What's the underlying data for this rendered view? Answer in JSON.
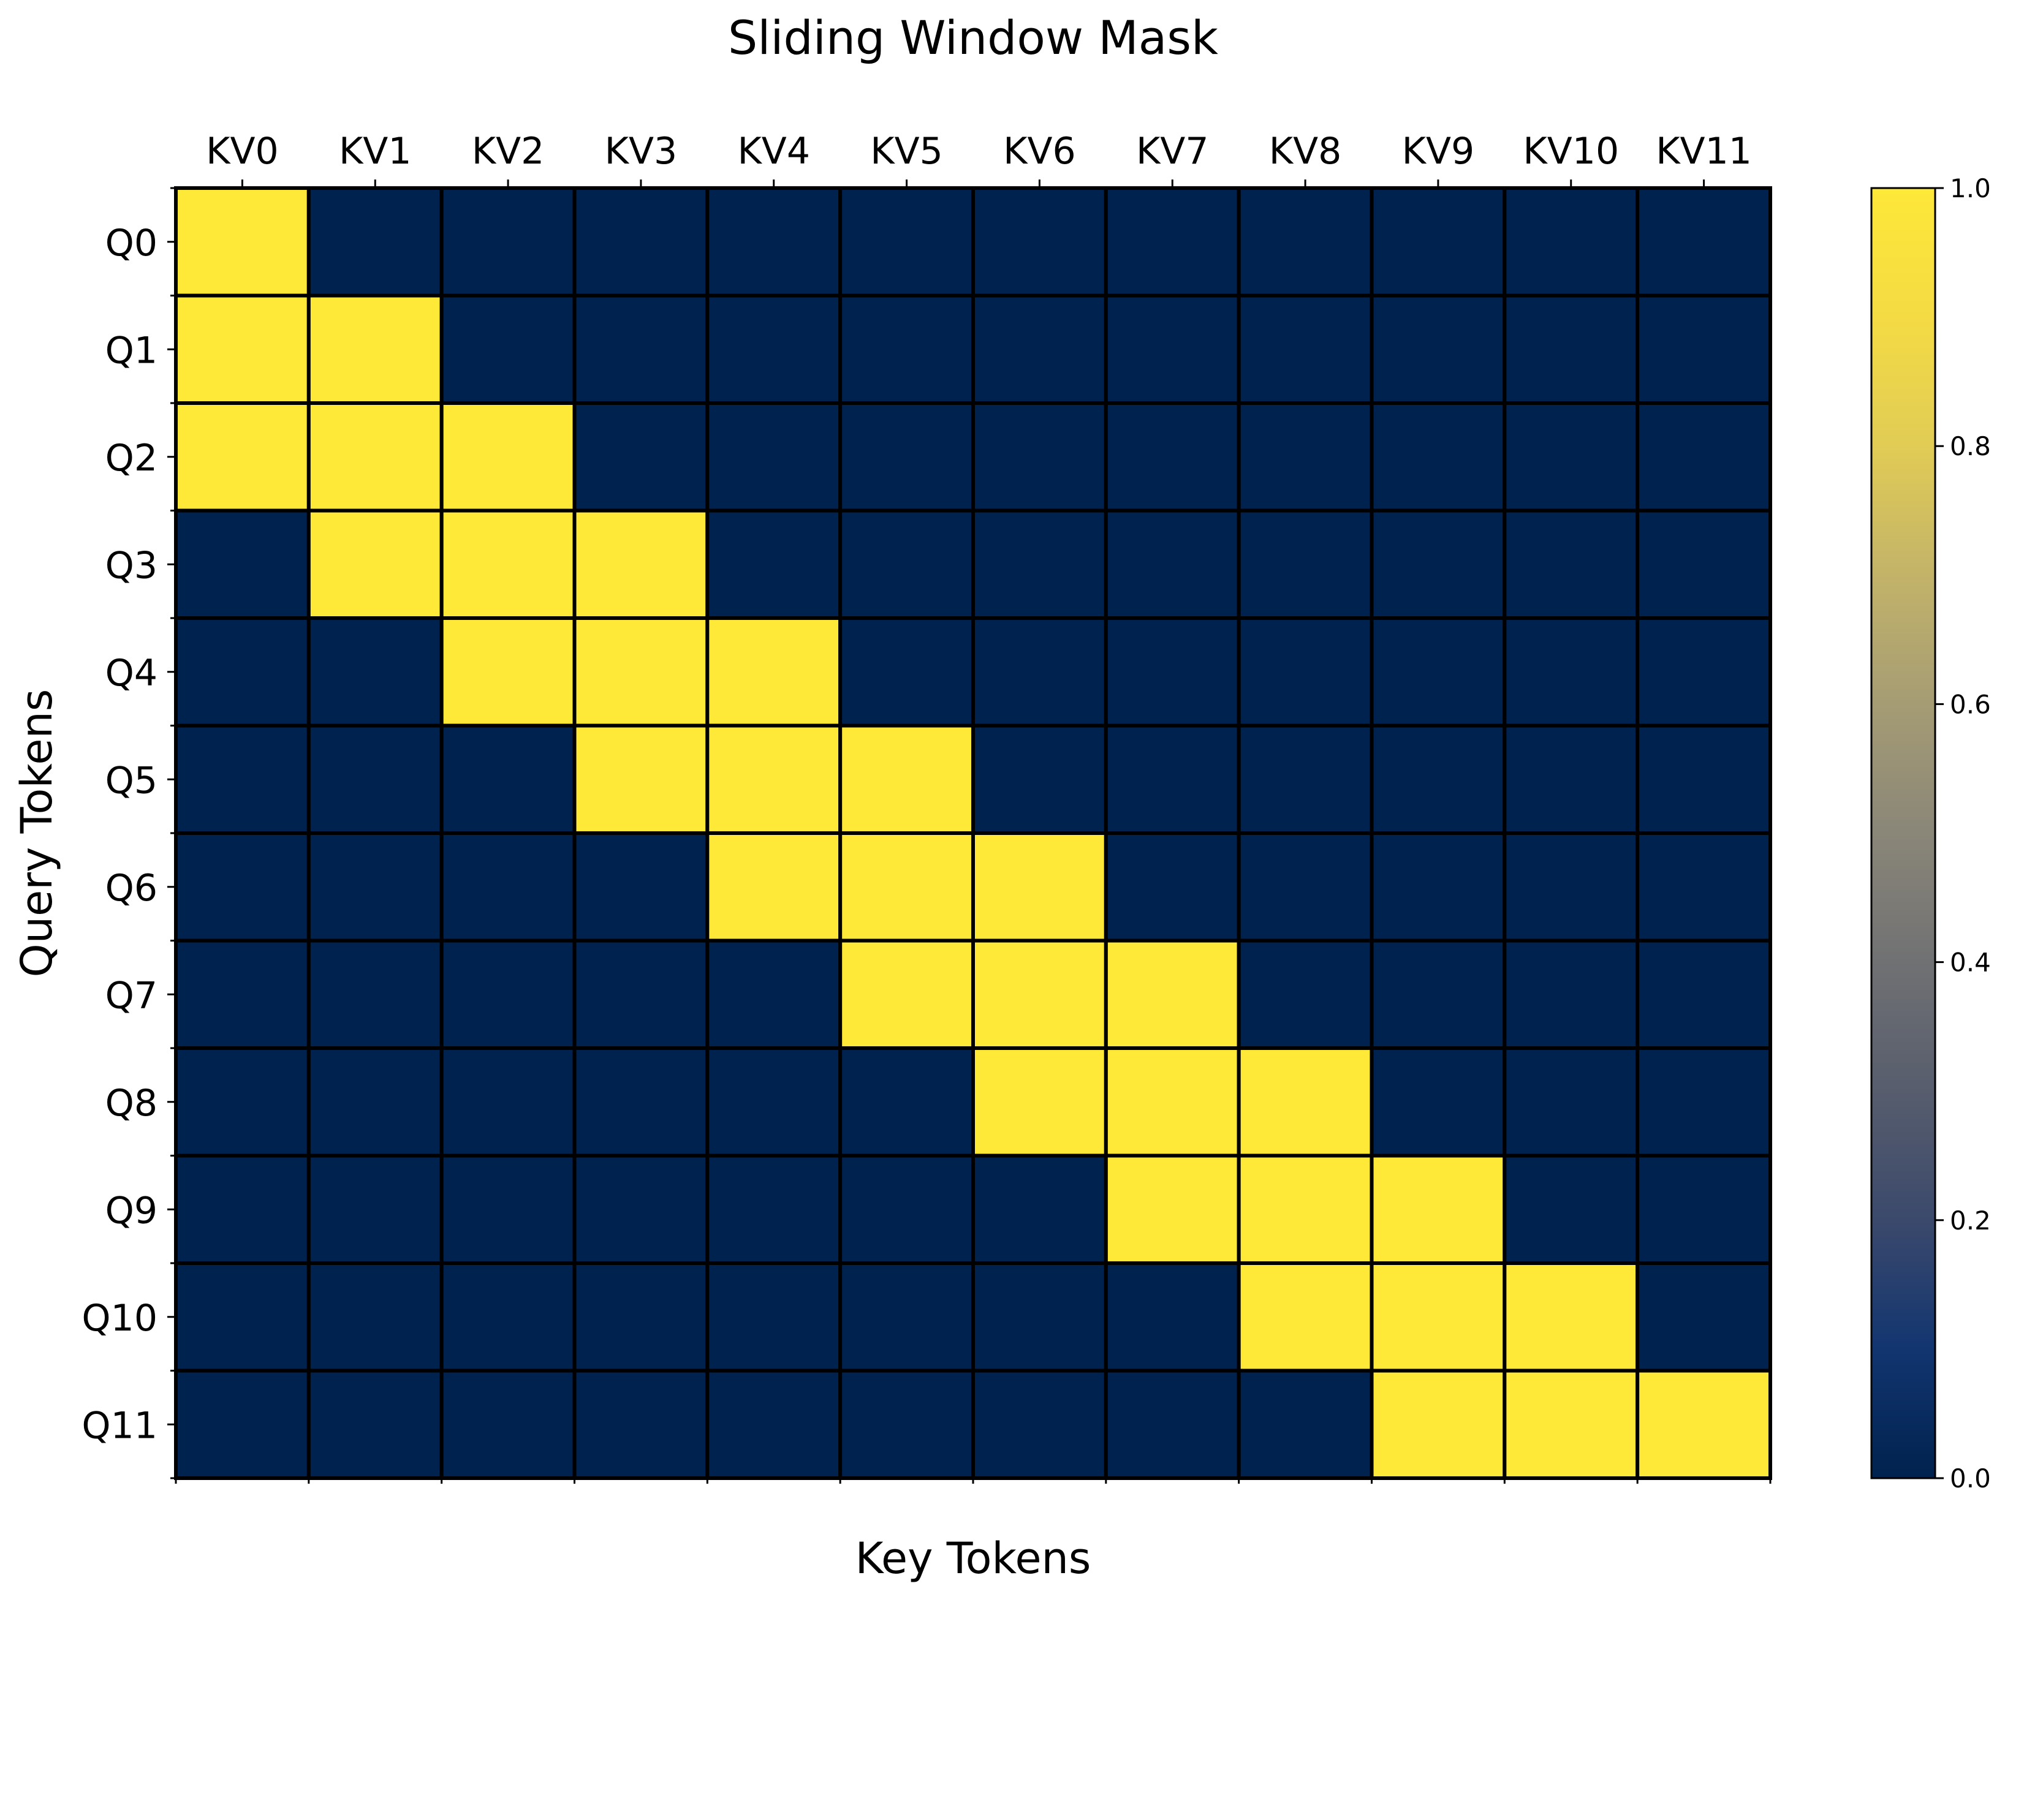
{
  "chart_data": {
    "type": "heatmap",
    "title": "Sliding Window Mask",
    "xlabel": "Key Tokens",
    "ylabel": "Query Tokens",
    "x_ticklabels": [
      "KV0",
      "KV1",
      "KV2",
      "KV3",
      "KV4",
      "KV5",
      "KV6",
      "KV7",
      "KV8",
      "KV9",
      "KV10",
      "KV11"
    ],
    "y_ticklabels": [
      "Q0",
      "Q1",
      "Q2",
      "Q3",
      "Q4",
      "Q5",
      "Q6",
      "Q7",
      "Q8",
      "Q9",
      "Q10",
      "Q11"
    ],
    "values": [
      [
        1,
        0,
        0,
        0,
        0,
        0,
        0,
        0,
        0,
        0,
        0,
        0
      ],
      [
        1,
        1,
        0,
        0,
        0,
        0,
        0,
        0,
        0,
        0,
        0,
        0
      ],
      [
        1,
        1,
        1,
        0,
        0,
        0,
        0,
        0,
        0,
        0,
        0,
        0
      ],
      [
        0,
        1,
        1,
        1,
        0,
        0,
        0,
        0,
        0,
        0,
        0,
        0
      ],
      [
        0,
        0,
        1,
        1,
        1,
        0,
        0,
        0,
        0,
        0,
        0,
        0
      ],
      [
        0,
        0,
        0,
        1,
        1,
        1,
        0,
        0,
        0,
        0,
        0,
        0
      ],
      [
        0,
        0,
        0,
        0,
        1,
        1,
        1,
        0,
        0,
        0,
        0,
        0
      ],
      [
        0,
        0,
        0,
        0,
        0,
        1,
        1,
        1,
        0,
        0,
        0,
        0
      ],
      [
        0,
        0,
        0,
        0,
        0,
        0,
        1,
        1,
        1,
        0,
        0,
        0
      ],
      [
        0,
        0,
        0,
        0,
        0,
        0,
        0,
        1,
        1,
        1,
        0,
        0
      ],
      [
        0,
        0,
        0,
        0,
        0,
        0,
        0,
        0,
        1,
        1,
        1,
        0
      ],
      [
        0,
        0,
        0,
        0,
        0,
        0,
        0,
        0,
        0,
        1,
        1,
        1
      ]
    ],
    "colormap": "cividis",
    "colors": {
      "low": "#00224e",
      "high": "#fee838",
      "gridline": "#000000"
    },
    "colorbar": {
      "range": [
        0.0,
        1.0
      ],
      "ticks": [
        "0.0",
        "0.2",
        "0.4",
        "0.6",
        "0.8",
        "1.0"
      ],
      "position": "right"
    },
    "x_axis_position": "top",
    "grid": true
  }
}
